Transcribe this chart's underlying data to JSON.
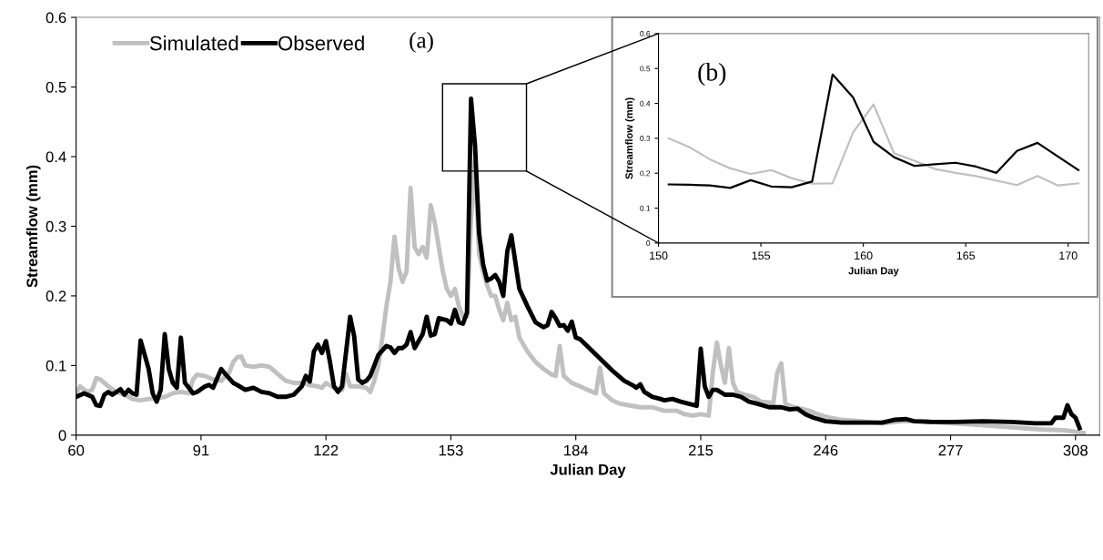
{
  "chart_data": [
    {
      "type": "line",
      "xlabel": "Julian Day",
      "ylabel": "Streamflow (mm)",
      "xlim": [
        60,
        314
      ],
      "xticks": [
        60,
        91,
        122,
        153,
        184,
        215,
        246,
        277,
        308
      ],
      "ylim": [
        0,
        0.6
      ],
      "yticks": [
        0,
        0.1,
        0.2,
        0.3,
        0.4,
        0.5,
        0.6
      ],
      "legend": "top left",
      "annotations": [
        "(a)"
      ],
      "series": [
        {
          "name": "Simulated",
          "color": "#c0c0c0",
          "x": [
            60,
            61,
            62,
            63,
            64,
            65,
            66,
            68,
            70,
            72,
            74,
            76,
            78,
            80,
            82,
            84,
            86,
            88,
            89,
            90,
            92,
            94,
            96,
            98,
            99,
            100,
            101,
            102,
            104,
            106,
            108,
            110,
            112,
            114,
            116,
            118,
            120,
            121,
            122,
            124,
            126,
            127,
            128,
            130,
            132,
            133,
            134,
            135,
            136,
            137,
            138,
            139,
            140,
            141,
            142,
            143,
            144,
            145,
            146,
            147,
            148,
            149,
            150,
            151,
            152,
            153,
            154,
            155,
            156,
            157,
            158,
            159,
            160,
            161,
            162,
            163,
            164,
            165,
            166,
            167,
            168,
            169,
            170,
            172,
            174,
            176,
            178,
            179,
            180,
            181,
            183,
            185,
            187,
            189,
            190,
            191,
            193,
            195,
            198,
            200,
            203,
            206,
            209,
            211,
            213,
            215,
            217,
            218,
            219,
            220,
            221,
            222,
            223,
            224,
            226,
            228,
            230,
            232,
            233,
            234,
            235,
            236,
            238,
            240,
            242,
            244,
            247,
            250,
            255,
            260,
            265,
            270,
            275,
            280,
            285,
            290,
            295,
            300,
            305,
            308,
            310
          ],
          "values": [
            0.06,
            0.07,
            0.065,
            0.062,
            0.065,
            0.082,
            0.08,
            0.07,
            0.062,
            0.058,
            0.052,
            0.05,
            0.052,
            0.053,
            0.055,
            0.06,
            0.062,
            0.06,
            0.08,
            0.087,
            0.085,
            0.08,
            0.078,
            0.09,
            0.105,
            0.112,
            0.113,
            0.1,
            0.098,
            0.1,
            0.098,
            0.088,
            0.078,
            0.075,
            0.075,
            0.072,
            0.07,
            0.068,
            0.075,
            0.068,
            0.065,
            0.088,
            0.07,
            0.07,
            0.068,
            0.062,
            0.078,
            0.1,
            0.14,
            0.185,
            0.22,
            0.285,
            0.24,
            0.22,
            0.235,
            0.355,
            0.27,
            0.26,
            0.27,
            0.255,
            0.33,
            0.305,
            0.27,
            0.235,
            0.21,
            0.2,
            0.21,
            0.185,
            0.17,
            0.17,
            0.31,
            0.395,
            0.26,
            0.235,
            0.215,
            0.2,
            0.2,
            0.18,
            0.165,
            0.19,
            0.165,
            0.17,
            0.14,
            0.12,
            0.105,
            0.095,
            0.087,
            0.085,
            0.128,
            0.085,
            0.075,
            0.07,
            0.065,
            0.06,
            0.097,
            0.06,
            0.05,
            0.045,
            0.042,
            0.04,
            0.04,
            0.035,
            0.035,
            0.03,
            0.028,
            0.03,
            0.028,
            0.09,
            0.133,
            0.1,
            0.075,
            0.125,
            0.075,
            0.062,
            0.058,
            0.055,
            0.048,
            0.047,
            0.045,
            0.09,
            0.103,
            0.045,
            0.04,
            0.038,
            0.035,
            0.03,
            0.025,
            0.022,
            0.02,
            0.017,
            0.02,
            0.02,
            0.018,
            0.016,
            0.014,
            0.012,
            0.01,
            0.008,
            0.007,
            0.005,
            0.003
          ]
        },
        {
          "name": "Observed",
          "color": "#000000",
          "x": [
            60,
            62,
            64,
            65,
            66,
            67,
            68,
            69,
            71,
            72,
            73,
            74,
            75,
            76,
            78,
            79,
            80,
            81,
            82,
            83,
            84,
            85,
            86,
            87,
            88,
            89,
            90,
            92,
            93,
            94,
            96,
            97,
            99,
            100,
            102,
            104,
            106,
            108,
            110,
            112,
            114,
            116,
            117,
            118,
            119,
            120,
            121,
            122,
            123,
            124,
            125,
            126,
            128,
            129,
            130,
            131,
            132,
            133,
            135,
            137,
            138,
            139,
            140,
            141,
            142,
            143,
            144,
            146,
            147,
            148,
            149,
            150,
            152,
            153,
            154,
            155,
            156,
            157,
            158,
            159,
            160,
            161,
            162,
            163,
            164,
            165,
            166,
            167,
            168,
            170,
            172,
            174,
            176,
            177,
            178,
            179,
            180,
            181,
            182,
            183,
            184,
            185,
            187,
            190,
            193,
            196,
            198,
            199,
            200,
            201,
            203,
            205,
            206,
            208,
            210,
            212,
            214,
            215,
            216,
            217,
            218,
            219,
            221,
            223,
            225,
            227,
            229,
            232,
            235,
            237,
            239,
            241,
            243,
            246,
            250,
            255,
            260,
            263,
            266,
            268,
            272,
            278,
            285,
            292,
            298,
            302,
            303,
            305,
            306,
            307,
            308,
            309
          ],
          "values": [
            0.055,
            0.06,
            0.055,
            0.043,
            0.042,
            0.058,
            0.062,
            0.058,
            0.066,
            0.058,
            0.065,
            0.06,
            0.058,
            0.136,
            0.095,
            0.06,
            0.048,
            0.065,
            0.145,
            0.095,
            0.075,
            0.068,
            0.14,
            0.075,
            0.068,
            0.06,
            0.062,
            0.07,
            0.072,
            0.068,
            0.095,
            0.088,
            0.075,
            0.072,
            0.065,
            0.068,
            0.062,
            0.06,
            0.055,
            0.055,
            0.058,
            0.07,
            0.085,
            0.077,
            0.12,
            0.13,
            0.118,
            0.135,
            0.105,
            0.07,
            0.062,
            0.07,
            0.17,
            0.142,
            0.08,
            0.075,
            0.078,
            0.085,
            0.115,
            0.128,
            0.126,
            0.118,
            0.125,
            0.125,
            0.13,
            0.148,
            0.125,
            0.145,
            0.17,
            0.143,
            0.145,
            0.168,
            0.165,
            0.16,
            0.18,
            0.162,
            0.16,
            0.176,
            0.483,
            0.415,
            0.29,
            0.245,
            0.222,
            0.225,
            0.23,
            0.22,
            0.2,
            0.264,
            0.287,
            0.21,
            0.185,
            0.162,
            0.155,
            0.158,
            0.177,
            0.168,
            0.157,
            0.158,
            0.15,
            0.163,
            0.14,
            0.138,
            0.127,
            0.11,
            0.093,
            0.078,
            0.072,
            0.068,
            0.073,
            0.062,
            0.055,
            0.052,
            0.05,
            0.052,
            0.048,
            0.045,
            0.042,
            0.124,
            0.07,
            0.055,
            0.065,
            0.065,
            0.058,
            0.058,
            0.055,
            0.048,
            0.045,
            0.04,
            0.04,
            0.037,
            0.038,
            0.03,
            0.025,
            0.02,
            0.018,
            0.018,
            0.018,
            0.022,
            0.023,
            0.02,
            0.019,
            0.019,
            0.02,
            0.019,
            0.017,
            0.017,
            0.025,
            0.025,
            0.043,
            0.03,
            0.025,
            0.01
          ]
        }
      ]
    },
    {
      "type": "line",
      "xlabel": "Julian Day",
      "ylabel": "Streamflow (mm)",
      "xlim": [
        150,
        171
      ],
      "xticks": [
        150,
        155,
        160,
        165,
        170
      ],
      "ylim": [
        0,
        0.6
      ],
      "yticks": [
        0,
        0.1,
        0.2,
        0.3,
        0.4,
        0.5,
        0.6
      ],
      "annotations": [
        "(b)"
      ],
      "series": [
        {
          "color": "#c0c0c0",
          "x": [
            150.5,
            151.5,
            152.5,
            153.5,
            154.5,
            155.5,
            156.5,
            157.5,
            158.5,
            159.5,
            160.5,
            161.5,
            162.5,
            163.5,
            164.5,
            165.5,
            166.5,
            167.5,
            168.5,
            169.5,
            170.5
          ],
          "values": [
            0.3,
            0.275,
            0.24,
            0.214,
            0.198,
            0.209,
            0.186,
            0.17,
            0.171,
            0.317,
            0.397,
            0.257,
            0.236,
            0.212,
            0.201,
            0.192,
            0.179,
            0.166,
            0.192,
            0.165,
            0.171
          ]
        },
        {
          "color": "#000000",
          "x": [
            150.5,
            151.5,
            152.5,
            153.5,
            154.5,
            155.5,
            156.5,
            157.5,
            158.5,
            159.5,
            160.5,
            161.5,
            162.5,
            163.5,
            164.5,
            165.5,
            166.5,
            167.5,
            168.5,
            169.5,
            170.5
          ],
          "values": [
            0.168,
            0.167,
            0.165,
            0.158,
            0.18,
            0.162,
            0.16,
            0.176,
            0.483,
            0.417,
            0.29,
            0.246,
            0.221,
            0.226,
            0.23,
            0.219,
            0.201,
            0.264,
            0.287,
            0.248,
            0.209
          ]
        }
      ]
    }
  ]
}
